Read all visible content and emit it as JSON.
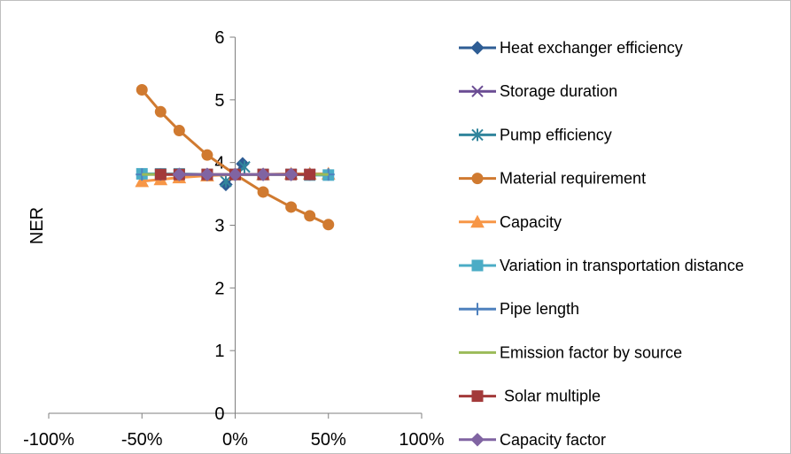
{
  "chart_data": {
    "type": "line",
    "title": "",
    "xlabel": "",
    "ylabel": "NER",
    "xlim": [
      -100,
      100
    ],
    "ylim": [
      0,
      6
    ],
    "x_ticks": [
      -100,
      -50,
      0,
      50,
      100
    ],
    "x_tick_labels": [
      "-100%",
      "-50%",
      "0%",
      "50%",
      "100%"
    ],
    "y_ticks": [
      0,
      1,
      2,
      3,
      4,
      5,
      6
    ],
    "y_tick_labels": [
      "0",
      "1",
      "2",
      "3",
      "4",
      "5",
      "6"
    ],
    "grid": false,
    "legend_position": "right",
    "series": [
      {
        "name": "Heat exchanger efficiency",
        "color": "#2e5d94",
        "marker": "diamond",
        "x": [
          -5,
          0,
          4
        ],
        "y": [
          3.65,
          3.81,
          3.98
        ]
      },
      {
        "name": "Storage duration",
        "color": "#6a4c93",
        "marker": "x",
        "x": [
          -40,
          -30,
          -15,
          0,
          15,
          30,
          40
        ],
        "y": [
          3.81,
          3.81,
          3.81,
          3.81,
          3.81,
          3.81,
          3.81
        ]
      },
      {
        "name": "Pump efficiency",
        "color": "#31859c",
        "marker": "asterisk",
        "x": [
          -5,
          0,
          5
        ],
        "y": [
          3.7,
          3.81,
          3.93
        ]
      },
      {
        "name": "Material requirement",
        "color": "#d07a30",
        "marker": "circle",
        "x": [
          -50,
          -40,
          -30,
          -15,
          0,
          15,
          30,
          40,
          50
        ],
        "y": [
          5.16,
          4.81,
          4.51,
          4.12,
          3.81,
          3.53,
          3.29,
          3.15,
          3.01
        ]
      },
      {
        "name": "Capacity",
        "color": "#f79646",
        "marker": "triangle",
        "x": [
          -50,
          -40,
          -30,
          -15,
          0,
          15,
          30,
          40,
          50
        ],
        "y": [
          3.7,
          3.73,
          3.76,
          3.79,
          3.81,
          3.81,
          3.82,
          3.82,
          3.82
        ]
      },
      {
        "name": "Variation in transportation distance",
        "color": "#4bacc6",
        "marker": "square",
        "x": [
          -50,
          -40,
          -30,
          -15,
          0,
          15,
          30,
          40,
          50
        ],
        "y": [
          3.82,
          3.82,
          3.82,
          3.81,
          3.81,
          3.81,
          3.81,
          3.8,
          3.8
        ]
      },
      {
        "name": "Pipe length",
        "color": "#4f81bd",
        "marker": "plus",
        "x": [
          -50,
          -40,
          -30,
          -15,
          0,
          15,
          30,
          40,
          50
        ],
        "y": [
          3.81,
          3.81,
          3.81,
          3.81,
          3.81,
          3.81,
          3.81,
          3.81,
          3.81
        ]
      },
      {
        "name": "Emission factor by source",
        "color": "#9bbb59",
        "marker": "none",
        "x": [
          -50,
          -40,
          -30,
          -15,
          0,
          15,
          30,
          40,
          50
        ],
        "y": [
          3.81,
          3.81,
          3.81,
          3.81,
          3.81,
          3.81,
          3.81,
          3.81,
          3.81
        ]
      },
      {
        "name": " Solar multiple",
        "color": "#a33a3a",
        "marker": "square",
        "x": [
          -40,
          -30,
          -15,
          0,
          15,
          30,
          40
        ],
        "y": [
          3.81,
          3.81,
          3.81,
          3.81,
          3.81,
          3.81,
          3.81
        ]
      },
      {
        "name": "Capacity factor",
        "color": "#8064a2",
        "marker": "diamond",
        "x": [
          -30,
          -15,
          0,
          15,
          30
        ],
        "y": [
          3.81,
          3.81,
          3.81,
          3.81,
          3.81
        ]
      }
    ]
  }
}
